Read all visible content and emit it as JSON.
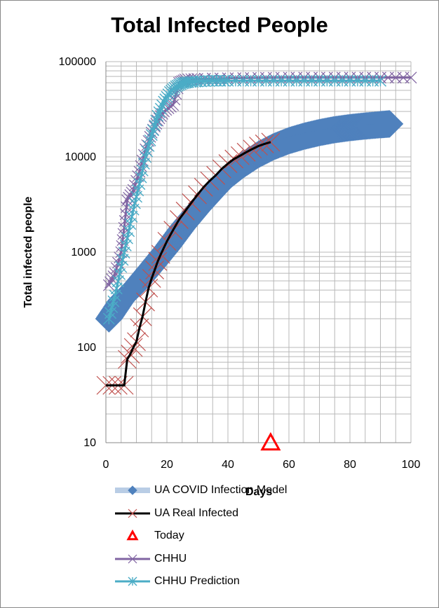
{
  "chart_data": {
    "type": "line",
    "title": "Total Infected People",
    "xlabel": "Days",
    "ylabel": "Total infected people",
    "xlim": [
      0,
      100
    ],
    "ylim": [
      10,
      100000
    ],
    "yscale": "log",
    "x_ticks": [
      0,
      20,
      40,
      60,
      80,
      100
    ],
    "y_ticks": [
      10,
      100,
      1000,
      10000,
      100000
    ],
    "y_tick_labels": [
      "10",
      "100",
      "1000",
      "10000",
      "100000"
    ],
    "grid": true,
    "legend_position": "bottom",
    "series": [
      {
        "name": "UA COVID Infection Model",
        "color": "#4F81BD",
        "marker": "diamond",
        "x": [
          1,
          5,
          10,
          15,
          20,
          25,
          30,
          35,
          40,
          45,
          50,
          55,
          60,
          65,
          70,
          75,
          80,
          85,
          90,
          93
        ],
        "y": [
          200,
          310,
          450,
          700,
          1100,
          1800,
          2800,
          4200,
          6200,
          8300,
          10600,
          12800,
          14800,
          16500,
          18000,
          19300,
          20300,
          21100,
          21800,
          22200
        ]
      },
      {
        "name": "UA Real Infected",
        "color": "#000000",
        "marker": "x",
        "marker_color": "#C0504D",
        "x": [
          0,
          2,
          4,
          6,
          7,
          8,
          9,
          10,
          11,
          12,
          13,
          14,
          15,
          16,
          17,
          18,
          20,
          22,
          24,
          26,
          28,
          30,
          32,
          34,
          36,
          38,
          40,
          42,
          44,
          46,
          48,
          50,
          52,
          54
        ],
        "y": [
          40,
          40,
          40,
          40,
          75,
          85,
          100,
          115,
          160,
          210,
          300,
          420,
          530,
          650,
          800,
          950,
          1300,
          1700,
          2200,
          2700,
          3300,
          4000,
          4800,
          5600,
          6400,
          7500,
          8500,
          9500,
          10300,
          11200,
          12100,
          13000,
          13700,
          14300
        ]
      },
      {
        "name": "Today",
        "color": "#FF0000",
        "marker": "triangle",
        "x": [
          54
        ],
        "y": [
          10
        ]
      },
      {
        "name": "CHHU",
        "color": "#8064A2",
        "marker": "x",
        "x": [
          1,
          3,
          5,
          6,
          7,
          9,
          11,
          13,
          15,
          17,
          19,
          22,
          24,
          26,
          30,
          40,
          50,
          60,
          70,
          80,
          90,
          100
        ],
        "y": [
          450,
          600,
          1000,
          1800,
          3500,
          4500,
          7000,
          12000,
          18000,
          24000,
          30000,
          35000,
          60000,
          65000,
          66000,
          67000,
          67500,
          68000,
          68000,
          68000,
          68000,
          68000
        ]
      },
      {
        "name": "CHHU Prediction",
        "color": "#4BACC6",
        "marker": "asterisk",
        "x": [
          1,
          3,
          5,
          7,
          9,
          11,
          13,
          15,
          17,
          19,
          21,
          23,
          25,
          27,
          30,
          35,
          40,
          50,
          60,
          70,
          80,
          90
        ],
        "y": [
          200,
          350,
          700,
          1400,
          2800,
          5200,
          10000,
          17000,
          27000,
          38000,
          48000,
          55000,
          59000,
          61000,
          62000,
          63000,
          63000,
          63000,
          63000,
          63000,
          63000,
          63000
        ]
      }
    ]
  }
}
